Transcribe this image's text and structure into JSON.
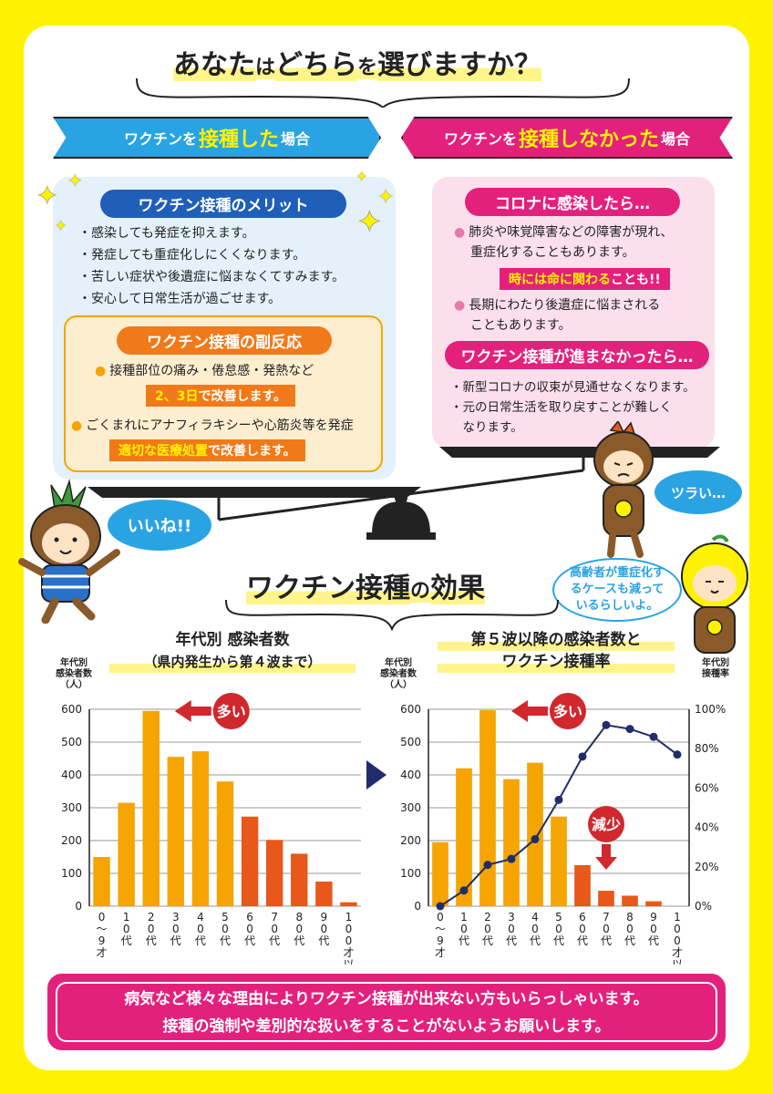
{
  "header": {
    "question_part1": "あなた",
    "question_part2": "は",
    "question_part3": "どちら",
    "question_part4": "を",
    "question_part5": "選びますか？"
  },
  "banners": {
    "left_pre": "ワクチンを",
    "left_em": "接種した",
    "left_post": "場合",
    "right_pre": "ワクチンを",
    "right_em": "接種しなかった",
    "right_post": "場合"
  },
  "merit": {
    "heading": "ワクチン接種のメリット",
    "items": [
      "・感染しても発症を抑えます。",
      "・発症しても重症化しにくくなります。",
      "・苦しい症状や後遺症に悩まなくてすみます。",
      "・安心して日常生活が過ごせます。"
    ]
  },
  "side_effects": {
    "heading": "ワクチン接種の副反応",
    "item1": "接種部位の痛み・倦怠感・発熱など",
    "tag1_em": "2、3日",
    "tag1_rest": "で改善します。",
    "item2": "ごくまれにアナフィラキシーや心筋炎等を発症",
    "tag2_em": "適切な医療処置",
    "tag2_rest": "で改善します。"
  },
  "if_infected": {
    "heading": "コロナに感染したら…",
    "item1_line1": "肺炎や味覚障害などの障害が現れ、",
    "item1_line2": "重症化することもあります。",
    "tag_em": "時には命に関わる",
    "tag_rest": "ことも!!",
    "item2_line1": "長期にわたり後遺症に悩まされる",
    "item2_line2": "こともあります。"
  },
  "if_not_progress": {
    "heading": "ワクチン接種が進まなかったら…",
    "items": [
      "・新型コロナの収束が見通せなくなります。",
      "・元の日常生活を取り戻すことが難しく",
      "　なります。"
    ]
  },
  "bubbles": {
    "good": "いいね!!",
    "tough": "ツラい…",
    "elderly": "高齢者が重症化するケースも減っているらしいよ。"
  },
  "effect_title": {
    "part1": "ワクチン接種",
    "part2": "の",
    "part3": "効果"
  },
  "chart_left_title": {
    "line1": "年代別 感染者数",
    "line2": "（県内発生から第４波まで）"
  },
  "chart_right_title": {
    "line1": "第５波以降の感染者数と",
    "line2": "ワクチン接種率"
  },
  "axis_captions": {
    "left_y": [
      "年代別",
      "感染者数",
      "（人）"
    ],
    "right_y2": [
      "年代別",
      "接種率"
    ]
  },
  "callouts": {
    "many": "多い",
    "decrease": "減少"
  },
  "chart_data": [
    {
      "type": "bar",
      "title": "年代別 感染者数",
      "subtitle": "（県内発生から第４波まで）",
      "ylabel": "年代別 感染者数（人）",
      "ylim": [
        0,
        600
      ],
      "yticks": [
        0,
        100,
        200,
        300,
        400,
        500,
        600
      ],
      "categories": [
        "0〜9才",
        "10代",
        "20代",
        "30代",
        "40代",
        "50代",
        "60代",
        "70代",
        "80代",
        "90代",
        "100才以上"
      ],
      "values": [
        150,
        315,
        595,
        455,
        472,
        380,
        273,
        202,
        160,
        75,
        12
      ],
      "colors": [
        "#f5a400",
        "#f5a400",
        "#f5a400",
        "#f5a400",
        "#f5a400",
        "#f5a400",
        "#e8581a",
        "#e8581a",
        "#e8581a",
        "#e8581a",
        "#e8581a"
      ],
      "grid": true
    },
    {
      "type": "bar",
      "title": "第５波以降の感染者数と ワクチン接種率",
      "ylabel": "年代別 感染者数（人）",
      "ylim": [
        0,
        600
      ],
      "yticks": [
        0,
        100,
        200,
        300,
        400,
        500,
        600
      ],
      "y2label": "年代別 接種率",
      "y2lim": [
        0,
        100
      ],
      "y2ticks": [
        "0%",
        "20%",
        "40%",
        "60%",
        "80%",
        "100%"
      ],
      "categories": [
        "0〜9才",
        "10代",
        "20代",
        "30代",
        "40代",
        "50代",
        "60代",
        "70代",
        "80代",
        "90代",
        "100才以上"
      ],
      "values": [
        195,
        420,
        597,
        387,
        437,
        273,
        125,
        47,
        32,
        15,
        0
      ],
      "colors": [
        "#f5a400",
        "#f5a400",
        "#f5a400",
        "#f5a400",
        "#f5a400",
        "#f5a400",
        "#e8581a",
        "#e8581a",
        "#e8581a",
        "#e8581a",
        "#e8581a"
      ],
      "line_series": {
        "name": "接種率",
        "values": [
          0,
          8,
          21,
          24,
          34,
          54,
          76,
          92,
          90,
          86,
          77
        ],
        "color": "#1f2d6b"
      },
      "grid": true
    }
  ],
  "footer": {
    "line1": "病気など様々な理由によりワクチン接種が出来ない方もいらっしゃいます。",
    "line2": "接種の強制や差別的な扱いをすることがないようお願いします。"
  }
}
